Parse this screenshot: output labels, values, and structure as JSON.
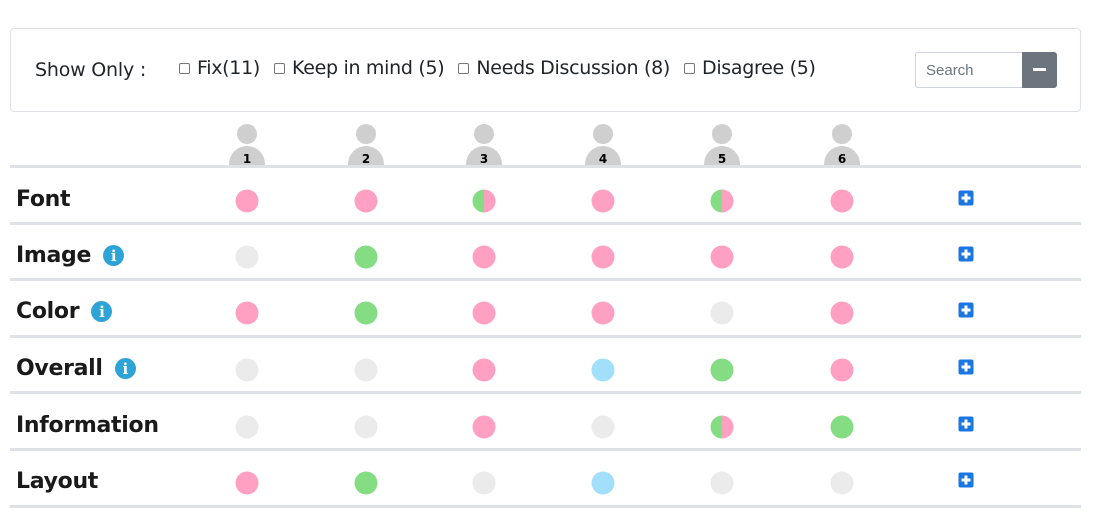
{
  "filter_bar": {
    "show_only_label": "Show Only :",
    "filters": [
      {
        "label": "Fix(11)",
        "checked": false
      },
      {
        "label": "Keep in mind (5)",
        "checked": false
      },
      {
        "label": "Needs Discussion (8)",
        "checked": false
      },
      {
        "label": "Disagree (5)",
        "checked": false
      }
    ],
    "search_placeholder": "Search",
    "collapse_icon": "minus-icon"
  },
  "reviewers": [
    "1",
    "2",
    "3",
    "4",
    "5",
    "6"
  ],
  "colors": {
    "pink": "#ffa0c2",
    "green": "#84dd82",
    "grey": "#ebebeb",
    "blue": "#a2dffa",
    "add_button": "#1a76e0",
    "info_icon": "#2ea3d6"
  },
  "rows": [
    {
      "label": "Font",
      "has_info": false,
      "statuses": [
        "pink",
        "pink",
        "split",
        "pink",
        "split",
        "pink"
      ]
    },
    {
      "label": "Image",
      "has_info": true,
      "statuses": [
        "grey",
        "green",
        "pink",
        "pink",
        "pink",
        "pink"
      ]
    },
    {
      "label": "Color",
      "has_info": true,
      "statuses": [
        "pink",
        "green",
        "pink",
        "pink",
        "grey",
        "pink"
      ]
    },
    {
      "label": "Overall",
      "has_info": true,
      "statuses": [
        "grey",
        "grey",
        "pink",
        "blue",
        "green",
        "pink"
      ]
    },
    {
      "label": "Information",
      "has_info": false,
      "statuses": [
        "grey",
        "grey",
        "pink",
        "grey",
        "split",
        "green"
      ]
    },
    {
      "label": "Layout",
      "has_info": false,
      "statuses": [
        "pink",
        "green",
        "grey",
        "blue",
        "grey",
        "grey"
      ]
    }
  ],
  "info_icon_glyph": "i",
  "add_icon": "plus-square-icon"
}
